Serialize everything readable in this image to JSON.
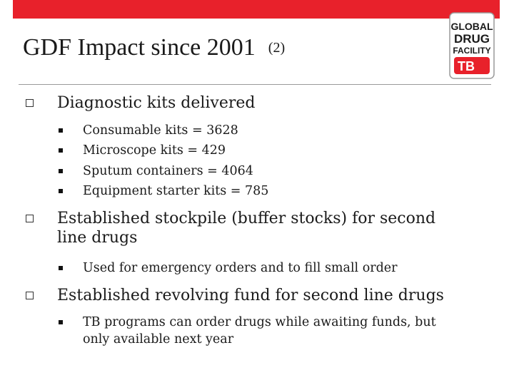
{
  "slide": {
    "title": "GDF Impact since 2001",
    "title_suffix": "(2)",
    "logo": {
      "line1": "GLOBAL",
      "line2": "DRUG",
      "line3": "FACILITY",
      "badge": "TB"
    },
    "bullets": [
      {
        "text": "Diagnostic kits delivered",
        "sub": [
          "Consumable kits = 3628",
          "Microscope kits = 429",
          "Sputum containers = 4064",
          "Equipment starter kits = 785"
        ]
      },
      {
        "text_line1": "Established stockpile (buffer stocks) for second",
        "text_line2": "line drugs",
        "sub": [
          "Used for emergency orders and to fill small order"
        ]
      },
      {
        "text": "Established revolving fund for second line drugs",
        "sub_line1": "TB programs can order drugs while awaiting funds, but",
        "sub_line2": "only available next year"
      }
    ]
  },
  "colors": {
    "accent": "#e8212b",
    "text": "#1a1a1a"
  }
}
